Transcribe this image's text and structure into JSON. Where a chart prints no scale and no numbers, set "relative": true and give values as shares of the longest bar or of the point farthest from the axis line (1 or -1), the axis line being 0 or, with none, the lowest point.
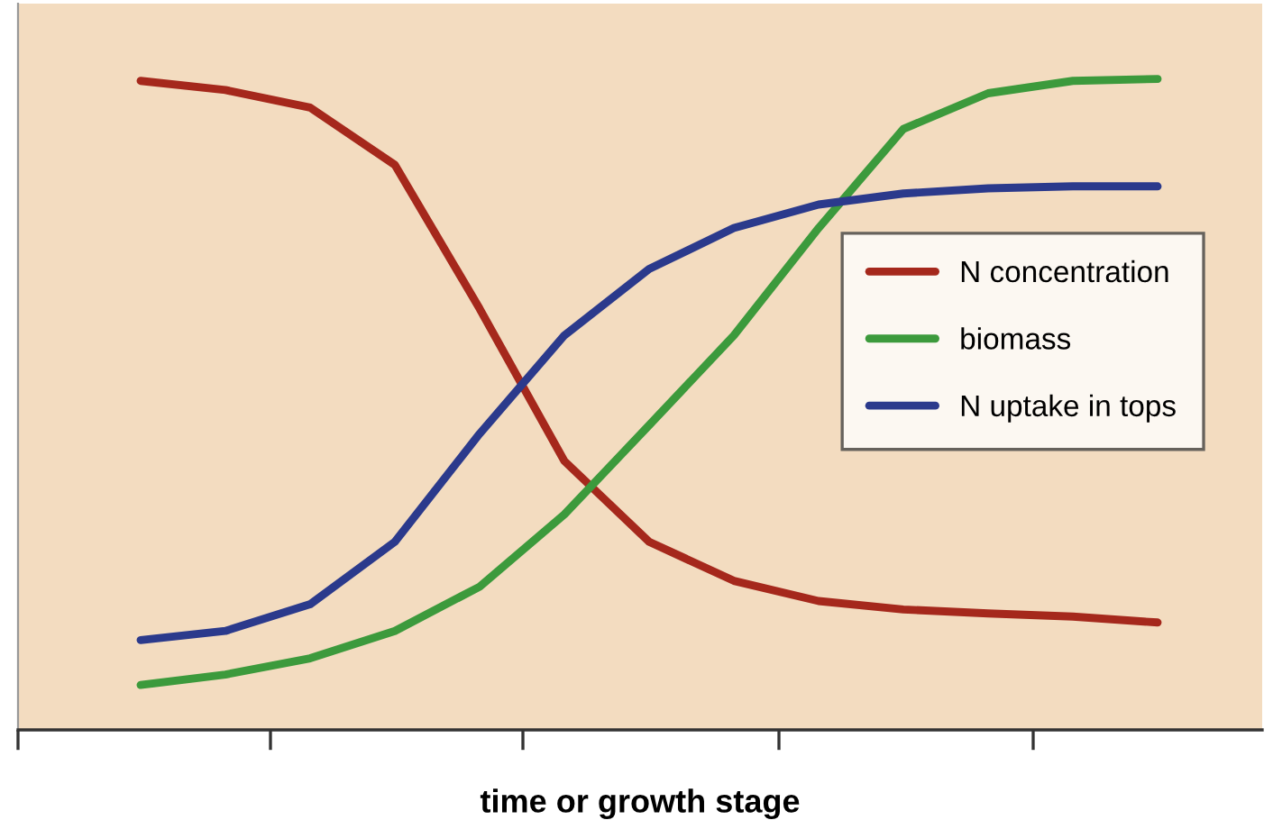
{
  "chart_data": {
    "type": "line",
    "relative": true,
    "xlabel": "time or growth stage",
    "categories": [
      null,
      null,
      null,
      null,
      null,
      null,
      null,
      null,
      null,
      null,
      null,
      null,
      null
    ],
    "series": [
      {
        "name": "N concentration",
        "color": "#a5281c",
        "values": [
          0.997,
          0.983,
          0.956,
          0.868,
          0.647,
          0.413,
          0.289,
          0.229,
          0.198,
          0.185,
          0.179,
          0.174,
          0.165
        ]
      },
      {
        "name": "biomass",
        "color": "#3c9a3c",
        "values": [
          0.069,
          0.085,
          0.11,
          0.152,
          0.22,
          0.331,
          0.468,
          0.606,
          0.771,
          0.923,
          0.978,
          0.997,
          1
        ]
      },
      {
        "name": "N uptake in tops",
        "color": "#2b3a8c",
        "values": [
          0.138,
          0.152,
          0.193,
          0.289,
          0.455,
          0.606,
          0.708,
          0.771,
          0.807,
          0.824,
          0.832,
          0.835,
          0.835
        ]
      }
    ],
    "legend": "right",
    "marker": "none",
    "line_style": "solid",
    "grid": false,
    "tick_labels": false
  }
}
